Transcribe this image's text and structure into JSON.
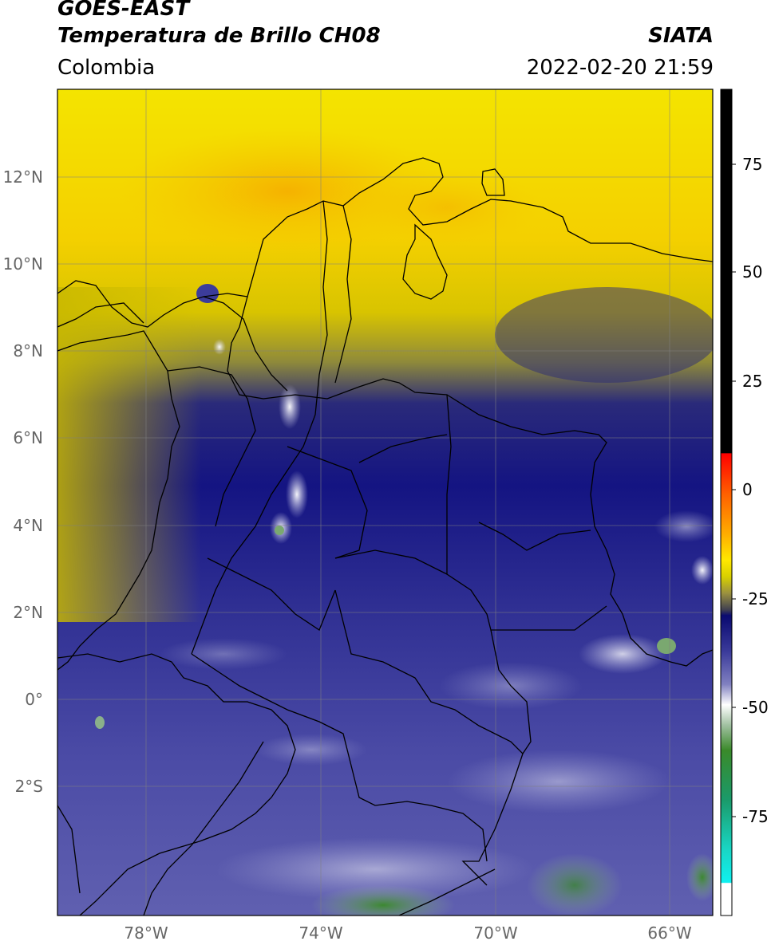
{
  "header": {
    "satellite": "GOES-EAST",
    "product": "Temperatura de Brillo CH08",
    "region": "Colombia",
    "source": "SIATA",
    "datetime": "2022-02-20 21:59"
  },
  "axes": {
    "lat_labels": [
      "12°N",
      "10°N",
      "8°N",
      "6°N",
      "4°N",
      "2°N",
      "0°",
      "2°S"
    ],
    "lon_labels": [
      "78°W",
      "74°W",
      "70°W",
      "66°W"
    ]
  },
  "colorbar": {
    "ticks": [
      "75",
      "50",
      "25",
      "0",
      "-25",
      "-50",
      "-75"
    ]
  },
  "colors": {
    "cold_white": "#f4f4f8",
    "deep_blue": "#0f0f7a",
    "mid_blue": "#3c3c9a",
    "yellow": "#f2e000",
    "orange_yellow": "#f5b800",
    "olive": "#8a8a33",
    "green": "#3a8a2a",
    "cyan": "#19d6c4",
    "red": "#ff0000",
    "black": "#000000"
  }
}
